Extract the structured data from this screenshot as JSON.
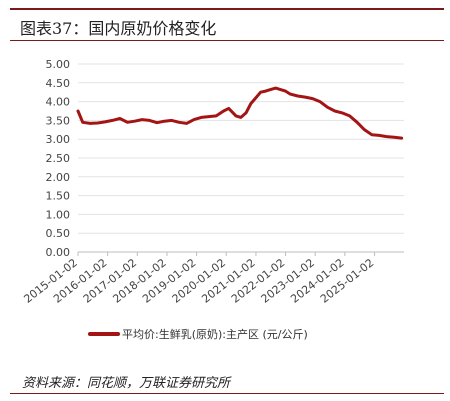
{
  "figure": {
    "title": "图表37：国内原奶价格变化",
    "source": "资料来源：同花顺，万联证券研究所"
  },
  "chart_data": {
    "type": "line",
    "title": "",
    "xlabel": "",
    "ylabel": "",
    "ylim": [
      0,
      5
    ],
    "yticks": [
      "5.00",
      "4.50",
      "4.00",
      "3.50",
      "3.00",
      "2.50",
      "2.00",
      "1.50",
      "1.00",
      "0.50",
      "0.00"
    ],
    "xticks": [
      "2015-01-02",
      "2016-01-02",
      "2017-01-02",
      "2018-01-02",
      "2019-01-02",
      "2020-01-02",
      "2021-01-02",
      "2022-01-02",
      "2023-01-02",
      "2024-01-02",
      "2025-01-02"
    ],
    "xlim": [
      "2015-01-02",
      "2025-12-31"
    ],
    "grid": true,
    "legend_position": "bottom",
    "series": [
      {
        "name": "平均价:生鲜乳(原奶):主产区 (元/公斤)",
        "color": "#a31515",
        "x": [
          "2015-01-02",
          "2015-03-01",
          "2015-06-01",
          "2015-09-01",
          "2015-12-01",
          "2016-03-01",
          "2016-06-01",
          "2016-09-01",
          "2016-12-01",
          "2017-03-01",
          "2017-06-01",
          "2017-09-01",
          "2017-12-01",
          "2018-03-01",
          "2018-06-01",
          "2018-09-01",
          "2018-12-01",
          "2019-03-01",
          "2019-06-01",
          "2019-09-01",
          "2019-12-01",
          "2020-02-01",
          "2020-05-01",
          "2020-07-01",
          "2020-09-01",
          "2020-11-01",
          "2021-01-01",
          "2021-03-01",
          "2021-05-01",
          "2021-07-01",
          "2021-09-01",
          "2021-11-01",
          "2022-01-01",
          "2022-03-01",
          "2022-06-01",
          "2022-09-01",
          "2022-12-01",
          "2023-03-01",
          "2023-06-01",
          "2023-09-01",
          "2023-12-01",
          "2024-03-01",
          "2024-06-01",
          "2024-09-01",
          "2024-12-01",
          "2025-03-01",
          "2025-06-01",
          "2025-09-01",
          "2025-12-01"
        ],
        "values": [
          3.75,
          3.45,
          3.42,
          3.43,
          3.46,
          3.5,
          3.55,
          3.45,
          3.48,
          3.52,
          3.5,
          3.44,
          3.48,
          3.5,
          3.45,
          3.42,
          3.52,
          3.58,
          3.6,
          3.62,
          3.75,
          3.82,
          3.62,
          3.58,
          3.7,
          3.95,
          4.1,
          4.25,
          4.28,
          4.32,
          4.36,
          4.32,
          4.28,
          4.2,
          4.15,
          4.12,
          4.08,
          4.0,
          3.85,
          3.75,
          3.7,
          3.62,
          3.45,
          3.25,
          3.12,
          3.1,
          3.07,
          3.05,
          3.03
        ]
      }
    ]
  }
}
